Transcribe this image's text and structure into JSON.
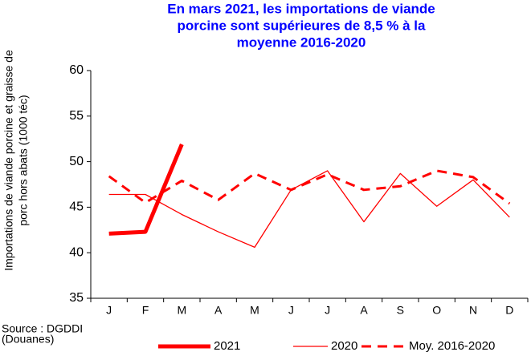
{
  "chart_data": {
    "type": "line",
    "title": [
      "En mars 2021, les importations de viande",
      "porcine sont supérieures de 8,5 % à la",
      "moyenne 2016-2020"
    ],
    "y_label": [
      "Importations de viande porcine et graisse de",
      "porc hors abats (1000 téc)"
    ],
    "source": [
      "Source : DGDDI",
      "(Douanes)"
    ],
    "categories": [
      "J",
      "F",
      "M",
      "A",
      "M",
      "J",
      "J",
      "A",
      "S",
      "O",
      "N",
      "D"
    ],
    "series": [
      {
        "name": "2021",
        "color": "#ff0000",
        "width": 5,
        "dash": false,
        "values": [
          42.1,
          42.3,
          51.9,
          null,
          null,
          null,
          null,
          null,
          null,
          null,
          null,
          null
        ]
      },
      {
        "name": "2020",
        "color": "#ff0000",
        "width": 1.3,
        "dash": false,
        "values": [
          46.4,
          46.4,
          44.2,
          42.3,
          40.6,
          46.9,
          49.0,
          43.4,
          48.7,
          45.1,
          48.0,
          43.9
        ]
      },
      {
        "name": "Moy. 2016-2020",
        "color": "#ff0000",
        "width": 3,
        "dash": true,
        "values": [
          48.4,
          45.5,
          47.9,
          45.8,
          48.7,
          46.9,
          48.6,
          46.9,
          47.3,
          49.0,
          48.3,
          45.4
        ]
      }
    ],
    "ylim": [
      35,
      60
    ],
    "yticks": [
      35,
      40,
      45,
      50,
      55,
      60
    ],
    "grid": false
  }
}
